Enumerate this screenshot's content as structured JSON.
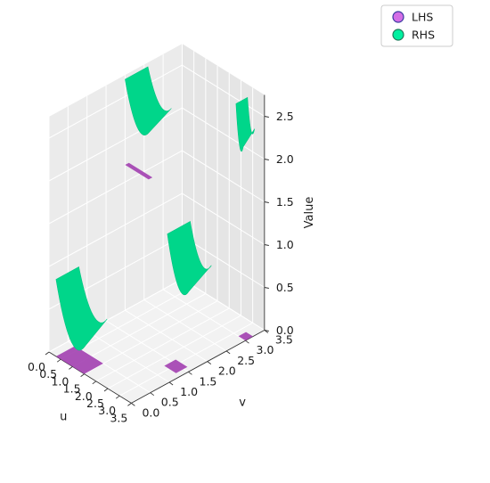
{
  "chart_data": {
    "type": "surface3d",
    "title": "",
    "xlabel": "u",
    "ylabel": "v",
    "zlabel": "Value",
    "xlim": [
      0,
      3.5
    ],
    "ylim": [
      0,
      3.5
    ],
    "zlim": [
      0,
      2.75
    ],
    "xticks": [
      "0.0",
      "0.5",
      "1.0",
      "1.5",
      "2.0",
      "2.5",
      "3.0",
      "3.5"
    ],
    "yticks": [
      "0.0",
      "0.5",
      "1.0",
      "1.5",
      "2.0",
      "2.5",
      "3.0",
      "3.5"
    ],
    "zticks": [
      "0.0",
      "0.5",
      "1.0",
      "1.5",
      "2.0",
      "2.5"
    ],
    "grid": true,
    "legend_position": "top-right",
    "legend": [
      {
        "label": "LHS",
        "color": "#d46ee6"
      },
      {
        "label": "RHS",
        "color": "#00f0a0"
      }
    ],
    "series": [
      {
        "name": "LHS",
        "kind": "flat-planes",
        "color": "#a23fb0",
        "planes": [
          {
            "u": [
              0.3,
              1.5
            ],
            "v": [
              0.0,
              0.5
            ],
            "value": 0.0
          },
          {
            "u": [
              2.8,
              3.3
            ],
            "v": [
              1.3,
              1.6
            ],
            "value": 0.0
          },
          {
            "u": [
              3.2,
              3.5
            ],
            "v": [
              3.0,
              3.2
            ],
            "value": 0.0
          },
          {
            "u": [
              0.0,
              1.0
            ],
            "v": [
              2.0,
              2.1
            ],
            "value": 1.7
          }
        ]
      },
      {
        "name": "RHS",
        "kind": "curved-surfaces",
        "color": "#00d68a",
        "surfaces": [
          {
            "u": [
              0.3,
              1.5
            ],
            "v": [
              0.0,
              0.6
            ],
            "value_min": 0.0,
            "value_max": 0.9
          },
          {
            "u": [
              1.8,
              2.7
            ],
            "v": [
              2.0,
              2.6
            ],
            "value_min": 0.4,
            "value_max": 1.2
          },
          {
            "u": [
              0.0,
              1.0
            ],
            "v": [
              2.0,
              2.6
            ],
            "value_min": 2.0,
            "value_max": 2.7
          },
          {
            "u": [
              3.1,
              3.4
            ],
            "v": [
              3.0,
              3.3
            ],
            "value_min": 2.0,
            "value_max": 2.7
          }
        ]
      }
    ]
  }
}
